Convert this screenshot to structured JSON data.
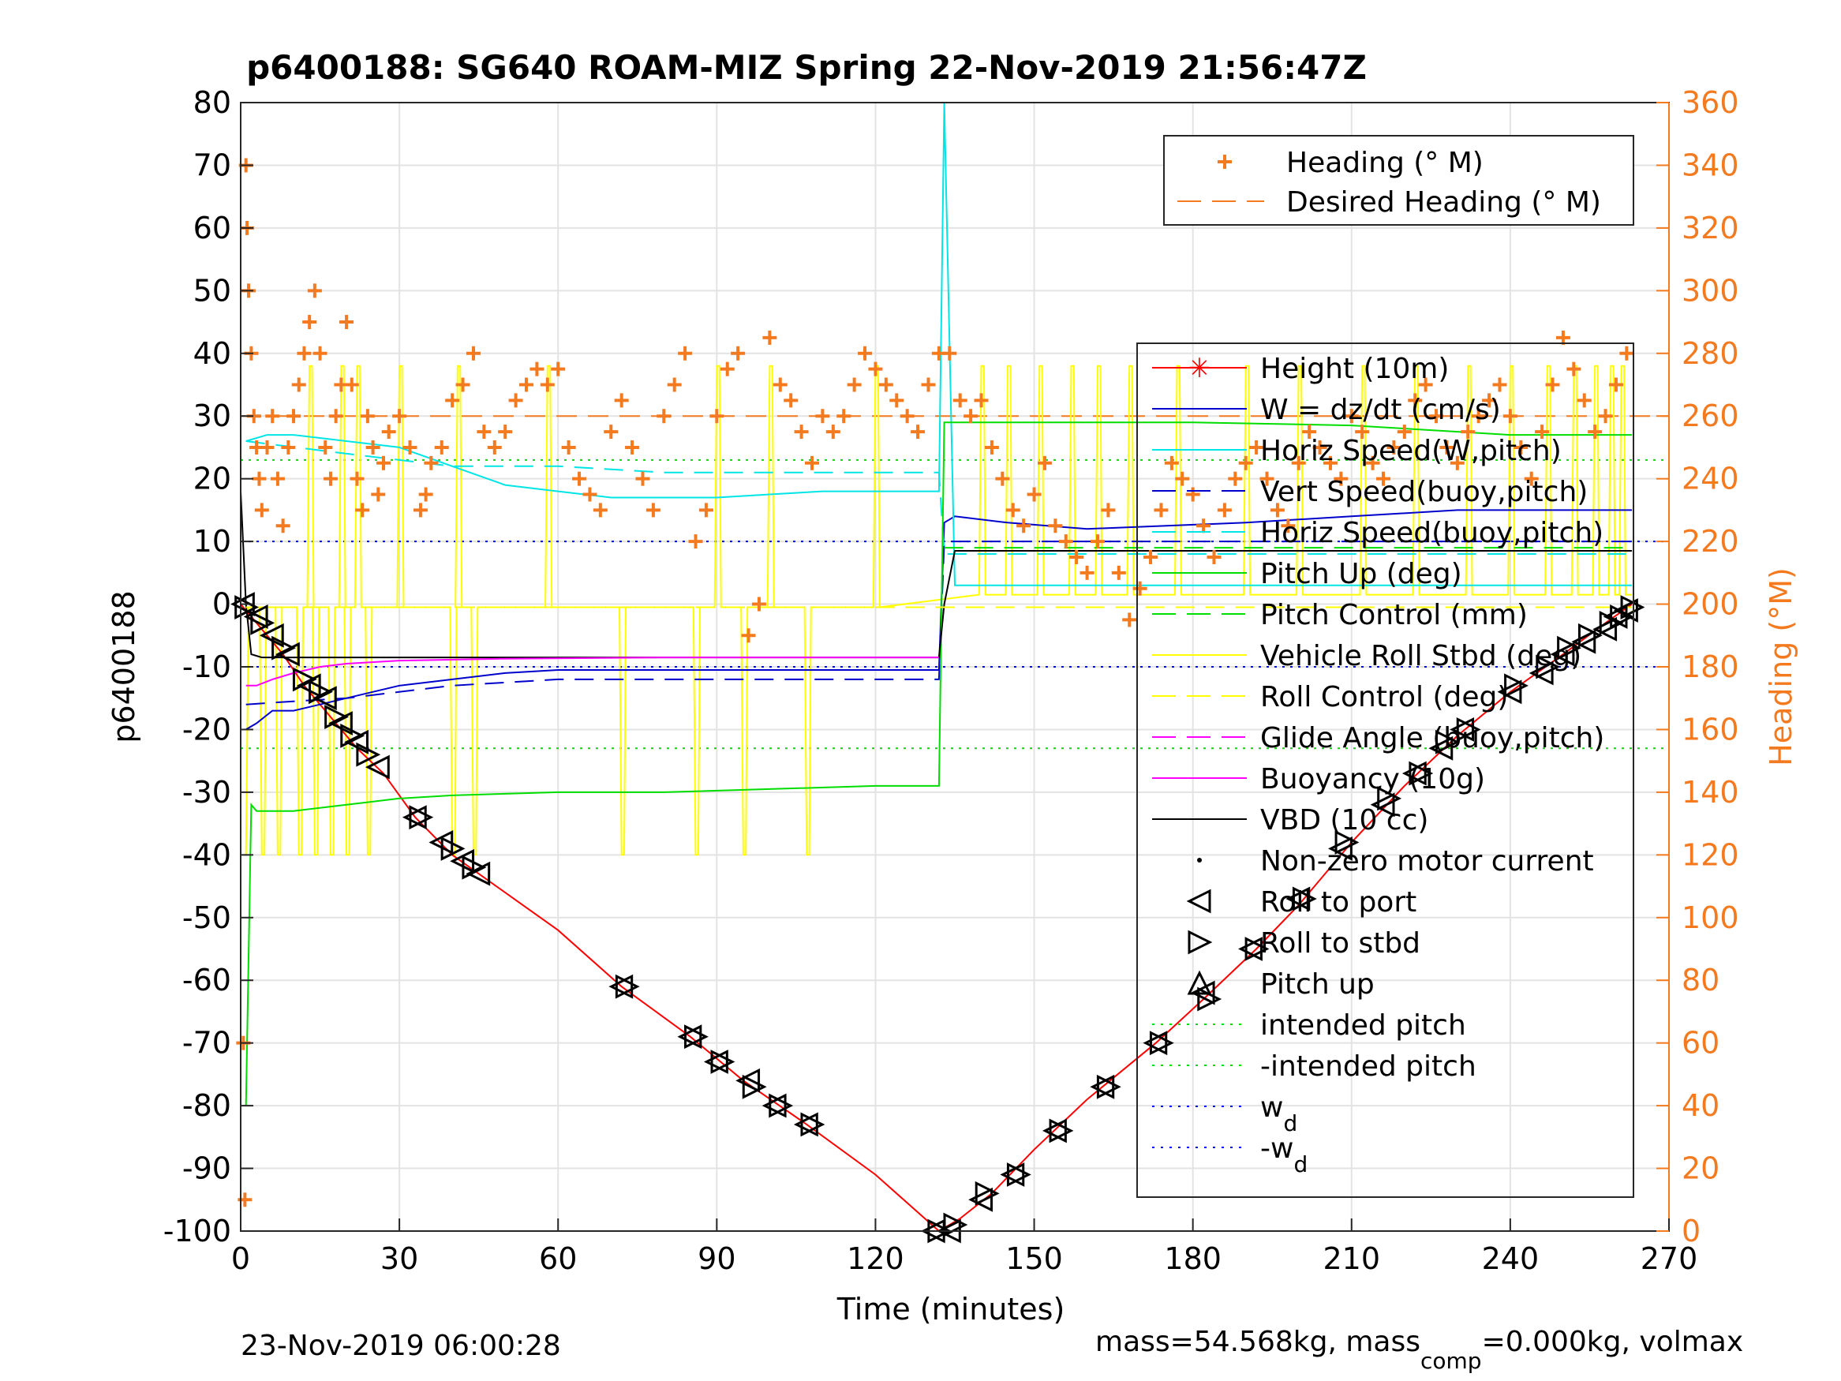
{
  "chart_data": {
    "type": "line",
    "title": "p6400188: SG640 ROAM-MIZ Spring 22-Nov-2019 21:56:47Z",
    "xlabel": "Time (minutes)",
    "ylabel_left": "p6400188",
    "ylabel_right": "Heading (°M)",
    "xlim": [
      0,
      270
    ],
    "ylim_left": [
      -100,
      80
    ],
    "ylim_right": [
      0,
      360
    ],
    "x_ticks": [
      0,
      30,
      60,
      90,
      120,
      150,
      180,
      210,
      240,
      270
    ],
    "y_ticks_left": [
      80,
      70,
      60,
      50,
      40,
      30,
      20,
      10,
      0,
      -10,
      -20,
      -30,
      -40,
      -50,
      -60,
      -70,
      -80,
      -90,
      -100
    ],
    "y_ticks_right": [
      360,
      340,
      320,
      300,
      280,
      260,
      240,
      220,
      200,
      180,
      160,
      140,
      120,
      100,
      80,
      60,
      40,
      20,
      0
    ],
    "grid": true,
    "footer_left": "23-Nov-2019 06:00:28",
    "footer_right": "mass=54.568kg, mass",
    "footer_right_sub": "comp",
    "footer_right_tail": "=0.000kg, volmax",
    "colors": {
      "heading": "#f47a20",
      "height": "#ff0000",
      "w": "#0000cc",
      "horiz": "#00e5e5",
      "pitch": "#00dd00",
      "roll": "#ffff00",
      "glide": "#ff00ff",
      "vbd": "#000000",
      "wd": "#0000ff"
    },
    "legend_heading": [
      {
        "label": "Heading (° M)",
        "color": "#f47a20",
        "style": "plus"
      },
      {
        "label": "Desired Heading (° M)",
        "color": "#f47a20",
        "style": "dash"
      }
    ],
    "legend_main": [
      {
        "label": "Height (10m)",
        "color": "#ff0000",
        "style": "line-star"
      },
      {
        "label": "W = dz/dt (cm/s)",
        "color": "#0000cc",
        "style": "line"
      },
      {
        "label": "Horiz Speed(W,pitch)",
        "color": "#00e5e5",
        "style": "line"
      },
      {
        "label": "Vert Speed(buoy,pitch)",
        "color": "#0000cc",
        "style": "dash"
      },
      {
        "label": "Horiz Speed(buoy,pitch)",
        "color": "#00e5e5",
        "style": "dash"
      },
      {
        "label": "Pitch Up (deg)",
        "color": "#00dd00",
        "style": "line"
      },
      {
        "label": "Pitch Control (mm)",
        "color": "#00dd00",
        "style": "dash"
      },
      {
        "label": "Vehicle Roll Stbd (deg)",
        "color": "#ffff00",
        "style": "line"
      },
      {
        "label": "Roll Control (deg)",
        "color": "#ffff00",
        "style": "dash"
      },
      {
        "label": "Glide Angle (buoy,pitch)",
        "color": "#ff00ff",
        "style": "dash"
      },
      {
        "label": "Buoyancy (10g)",
        "color": "#ff00ff",
        "style": "line"
      },
      {
        "label": "VBD (10 cc)",
        "color": "#000000",
        "style": "line"
      },
      {
        "label": "Non-zero motor current",
        "color": "#000000",
        "style": "dot"
      },
      {
        "label": "Roll to port",
        "color": "#000000",
        "style": "tri-left"
      },
      {
        "label": "Roll to stbd",
        "color": "#000000",
        "style": "tri-right"
      },
      {
        "label": "Pitch up",
        "color": "#000000",
        "style": "tri-up"
      },
      {
        "label": "intended pitch",
        "color": "#00dd00",
        "style": "dot-line"
      },
      {
        "label": "-intended pitch",
        "color": "#00dd00",
        "style": "dot-line"
      },
      {
        "label": "w",
        "sub": "d",
        "color": "#0000ff",
        "style": "dot-line"
      },
      {
        "label": "-w",
        "sub": "d",
        "color": "#0000ff",
        "style": "dot-line"
      }
    ],
    "series": [
      {
        "name": "Height (10m)",
        "color": "#ff0000",
        "x": [
          0,
          2,
          5,
          8,
          12,
          17,
          22,
          27,
          33,
          40,
          45,
          60,
          72,
          85,
          95,
          107,
          120,
          132,
          134,
          136,
          142,
          150,
          160,
          173,
          182,
          192,
          200,
          210,
          220,
          230,
          240,
          250,
          258,
          263
        ],
        "y": [
          0,
          -2,
          -5,
          -8,
          -13,
          -18,
          -23,
          -27,
          -34,
          -40,
          -43,
          -52,
          -61,
          -69,
          -76,
          -83,
          -91,
          -100,
          -99,
          -98,
          -94,
          -87,
          -79,
          -70,
          -63,
          -55,
          -48,
          -38,
          -29,
          -21,
          -14,
          -8,
          -3,
          0
        ]
      },
      {
        "name": "W = dz/dt (cm/s)",
        "color": "#0000cc",
        "x": [
          1,
          3,
          6,
          10,
          15,
          20,
          30,
          40,
          50,
          60,
          70,
          80,
          90,
          100,
          110,
          120,
          132,
          133,
          135,
          145,
          160,
          175,
          190,
          210,
          230,
          250,
          263
        ],
        "y": [
          -20,
          -19,
          -17,
          -17,
          -16,
          -15,
          -13,
          -12,
          -11,
          -10.5,
          -10.5,
          -10.5,
          -10.5,
          -10.5,
          -10.5,
          -10.5,
          -10.5,
          13,
          14,
          13,
          12,
          12.5,
          13,
          14,
          15,
          15,
          15
        ]
      },
      {
        "name": "Horiz Speed(W,pitch)",
        "color": "#00e5e5",
        "x": [
          1,
          5,
          10,
          20,
          30,
          40,
          50,
          60,
          70,
          80,
          90,
          100,
          110,
          120,
          130,
          132,
          133,
          135,
          150,
          200,
          263
        ],
        "y": [
          26,
          27,
          27,
          26,
          25,
          22,
          19,
          18,
          17,
          17,
          17,
          17.5,
          18,
          18,
          18,
          18,
          80,
          3,
          3,
          3,
          3
        ]
      },
      {
        "name": "Vert Speed(buoy,pitch)",
        "color": "#0000cc",
        "dash": true,
        "x": [
          1,
          10,
          20,
          40,
          60,
          80,
          100,
          120,
          132,
          133,
          150,
          200,
          263
        ],
        "y": [
          -16,
          -15.5,
          -15,
          -13,
          -12,
          -12,
          -12,
          -12,
          -12,
          10,
          10,
          10,
          10
        ]
      },
      {
        "name": "Horiz Speed(buoy,pitch)",
        "color": "#00e5e5",
        "dash": true,
        "x": [
          1,
          20,
          40,
          60,
          80,
          100,
          120,
          132,
          133,
          150,
          200,
          263
        ],
        "y": [
          26,
          24,
          22,
          22,
          21,
          21,
          21,
          21,
          8,
          8,
          8,
          8
        ]
      },
      {
        "name": "Pitch Up (deg)",
        "color": "#00dd00",
        "x": [
          1,
          2,
          3,
          5,
          10,
          20,
          30,
          40,
          60,
          80,
          100,
          120,
          132,
          133,
          135,
          150,
          180,
          210,
          240,
          263
        ],
        "y": [
          -80,
          -32,
          -33,
          -33,
          -33,
          -32,
          -31,
          -30.5,
          -30,
          -30,
          -29.5,
          -29,
          -29,
          29,
          29,
          29,
          29,
          28.5,
          27,
          27
        ]
      },
      {
        "name": "Pitch Control (mm)",
        "color": "#00dd00",
        "dash": true,
        "x": [
          133,
          263
        ],
        "y": [
          9,
          9
        ]
      },
      {
        "name": "VBD (10 cc)",
        "color": "#000000",
        "x": [
          0,
          1,
          2,
          4,
          132,
          133,
          135,
          263
        ],
        "y": [
          18,
          0,
          -8,
          -8.5,
          -8.5,
          0,
          8.5,
          8.5
        ]
      },
      {
        "name": "Buoyancy (10g)",
        "color": "#ff00ff",
        "x": [
          1,
          3,
          6,
          10,
          15,
          20,
          30,
          50,
          80,
          110,
          132
        ],
        "y": [
          -13,
          -13,
          -12,
          -11,
          -10,
          -9.5,
          -9,
          -8.7,
          -8.5,
          -8.5,
          -8.5
        ]
      },
      {
        "name": "Glide Angle (buoy,pitch)",
        "color": "#ff00ff",
        "dash": true,
        "x": [
          1,
          132
        ],
        "y": [
          -0.5,
          -0.5
        ]
      },
      {
        "name": "Roll Control (deg)",
        "color": "#ffff00",
        "dash": true,
        "x": [
          1,
          263
        ],
        "y": [
          -0.5,
          -0.5
        ]
      }
    ],
    "roll_spikes": {
      "name": "Vehicle Roll Stbd (deg)",
      "baseline_descent": -0.5,
      "baseline_ascent": 1.5,
      "down_spikes_x": [
        4,
        7,
        11,
        14,
        17,
        20,
        24,
        40,
        44,
        72,
        86,
        95,
        107
      ],
      "up_spikes_x": [
        13,
        19,
        22,
        30,
        41,
        58,
        90,
        100,
        120,
        140,
        145,
        151,
        157,
        162,
        168,
        177,
        190,
        200,
        212,
        222,
        232,
        240,
        247,
        252,
        256,
        259,
        261
      ],
      "spike_low": -40,
      "spike_high": 38
    },
    "reference_lines": [
      {
        "name": "intended pitch",
        "y": 23,
        "color": "#00dd00"
      },
      {
        "name": "-intended pitch",
        "y": -23,
        "color": "#00dd00"
      },
      {
        "name": "wd",
        "y": 10,
        "color": "#0000ff"
      },
      {
        "name": "-wd",
        "y": -10,
        "color": "#0000ff"
      }
    ],
    "desired_heading_right": 260,
    "heading_right": {
      "x": [
        0.5,
        0.8,
        1,
        1.2,
        1.5,
        2,
        2.5,
        3,
        3.5,
        4,
        5,
        6,
        7,
        8,
        9,
        10,
        11,
        12,
        13,
        14,
        15,
        16,
        17,
        18,
        19,
        20,
        21,
        22,
        23,
        24,
        25,
        26,
        27,
        28,
        30,
        32,
        34,
        35,
        36,
        38,
        40,
        42,
        44,
        46,
        48,
        50,
        52,
        54,
        56,
        58,
        60,
        62,
        64,
        66,
        68,
        70,
        72,
        74,
        76,
        78,
        80,
        82,
        84,
        86,
        88,
        90,
        92,
        94,
        96,
        98,
        100,
        102,
        104,
        106,
        108,
        110,
        112,
        114,
        116,
        118,
        120,
        122,
        124,
        126,
        128,
        130,
        132,
        134,
        136,
        138,
        140,
        142,
        144,
        146,
        148,
        150,
        152,
        154,
        156,
        158,
        160,
        162,
        164,
        166,
        168,
        170,
        172,
        174,
        176,
        178,
        180,
        182,
        184,
        186,
        188,
        190,
        192,
        194,
        196,
        198,
        200,
        202,
        204,
        206,
        208,
        210,
        212,
        214,
        216,
        218,
        220,
        222,
        224,
        226,
        228,
        230,
        232,
        234,
        236,
        238,
        240,
        242,
        244,
        246,
        248,
        250,
        252,
        254,
        256,
        258,
        260,
        262
      ],
      "y": [
        60,
        10,
        340,
        320,
        300,
        280,
        260,
        250,
        240,
        230,
        250,
        260,
        240,
        225,
        250,
        260,
        270,
        280,
        290,
        300,
        280,
        250,
        240,
        260,
        270,
        290,
        270,
        240,
        230,
        260,
        250,
        235,
        245,
        255,
        260,
        250,
        230,
        235,
        245,
        250,
        265,
        270,
        280,
        255,
        250,
        255,
        265,
        270,
        275,
        270,
        275,
        250,
        240,
        235,
        230,
        255,
        265,
        250,
        240,
        230,
        260,
        270,
        280,
        220,
        230,
        260,
        275,
        280,
        190,
        200,
        285,
        270,
        265,
        255,
        245,
        260,
        255,
        260,
        270,
        280,
        275,
        270,
        265,
        260,
        255,
        270,
        280,
        280,
        265,
        260,
        265,
        250,
        240,
        230,
        225,
        235,
        245,
        225,
        220,
        215,
        210,
        220,
        230,
        210,
        195,
        205,
        215,
        230,
        245,
        240,
        235,
        225,
        215,
        230,
        240,
        245,
        250,
        240,
        230,
        225,
        245,
        255,
        250,
        245,
        240,
        260,
        255,
        245,
        240,
        250,
        255,
        265,
        270,
        260,
        250,
        245,
        255,
        260,
        265,
        270,
        260,
        250,
        240,
        255,
        270,
        285,
        275,
        265,
        255,
        260,
        270,
        280
      ]
    },
    "markers_port": [
      [
        0.5,
        0
      ],
      [
        3,
        -2
      ],
      [
        6,
        -5
      ],
      [
        9,
        -8
      ],
      [
        13,
        -13
      ],
      [
        16,
        -15
      ],
      [
        19,
        -19
      ],
      [
        22,
        -22
      ],
      [
        26,
        -26
      ],
      [
        33,
        -34
      ],
      [
        38,
        -38
      ],
      [
        42,
        -41
      ],
      [
        45,
        -43
      ],
      [
        72,
        -61
      ],
      [
        85,
        -69
      ],
      [
        90,
        -73
      ],
      [
        96,
        -76
      ],
      [
        101,
        -80
      ],
      [
        107,
        -83
      ],
      [
        131,
        -100
      ],
      [
        134,
        -100
      ],
      [
        140,
        -95
      ],
      [
        146,
        -91
      ],
      [
        154,
        -84
      ],
      [
        163,
        -77
      ],
      [
        173,
        -70
      ],
      [
        182,
        -62
      ],
      [
        191,
        -55
      ],
      [
        200,
        -47
      ],
      [
        208,
        -39
      ],
      [
        216,
        -32
      ],
      [
        222,
        -27
      ],
      [
        227,
        -23
      ],
      [
        231,
        -20
      ],
      [
        240,
        -14
      ],
      [
        246,
        -11
      ],
      [
        250,
        -8
      ],
      [
        254,
        -6
      ],
      [
        258,
        -4
      ],
      [
        260,
        -2
      ],
      [
        262,
        -1
      ]
    ],
    "markers_stbd": [
      [
        1,
        -0.5
      ],
      [
        4,
        -3
      ],
      [
        8,
        -7
      ],
      [
        12,
        -12
      ],
      [
        15,
        -14
      ],
      [
        18,
        -18
      ],
      [
        21,
        -21
      ],
      [
        24,
        -24
      ],
      [
        34,
        -34
      ],
      [
        40,
        -39
      ],
      [
        44,
        -42
      ],
      [
        73,
        -61
      ],
      [
        86,
        -69
      ],
      [
        91,
        -73
      ],
      [
        97,
        -77
      ],
      [
        102,
        -80
      ],
      [
        108,
        -83
      ],
      [
        132,
        -100
      ],
      [
        135,
        -99
      ],
      [
        141,
        -94
      ],
      [
        147,
        -91
      ],
      [
        155,
        -84
      ],
      [
        164,
        -77
      ],
      [
        174,
        -70
      ],
      [
        183,
        -63
      ],
      [
        192,
        -55
      ],
      [
        201,
        -47
      ],
      [
        209,
        -38
      ],
      [
        217,
        -31
      ],
      [
        223,
        -27
      ],
      [
        228,
        -22
      ],
      [
        232,
        -20
      ],
      [
        241,
        -13
      ],
      [
        247,
        -10
      ],
      [
        251,
        -7
      ],
      [
        255,
        -5
      ],
      [
        259,
        -3
      ],
      [
        261,
        -2
      ],
      [
        263,
        -0.5
      ]
    ]
  }
}
